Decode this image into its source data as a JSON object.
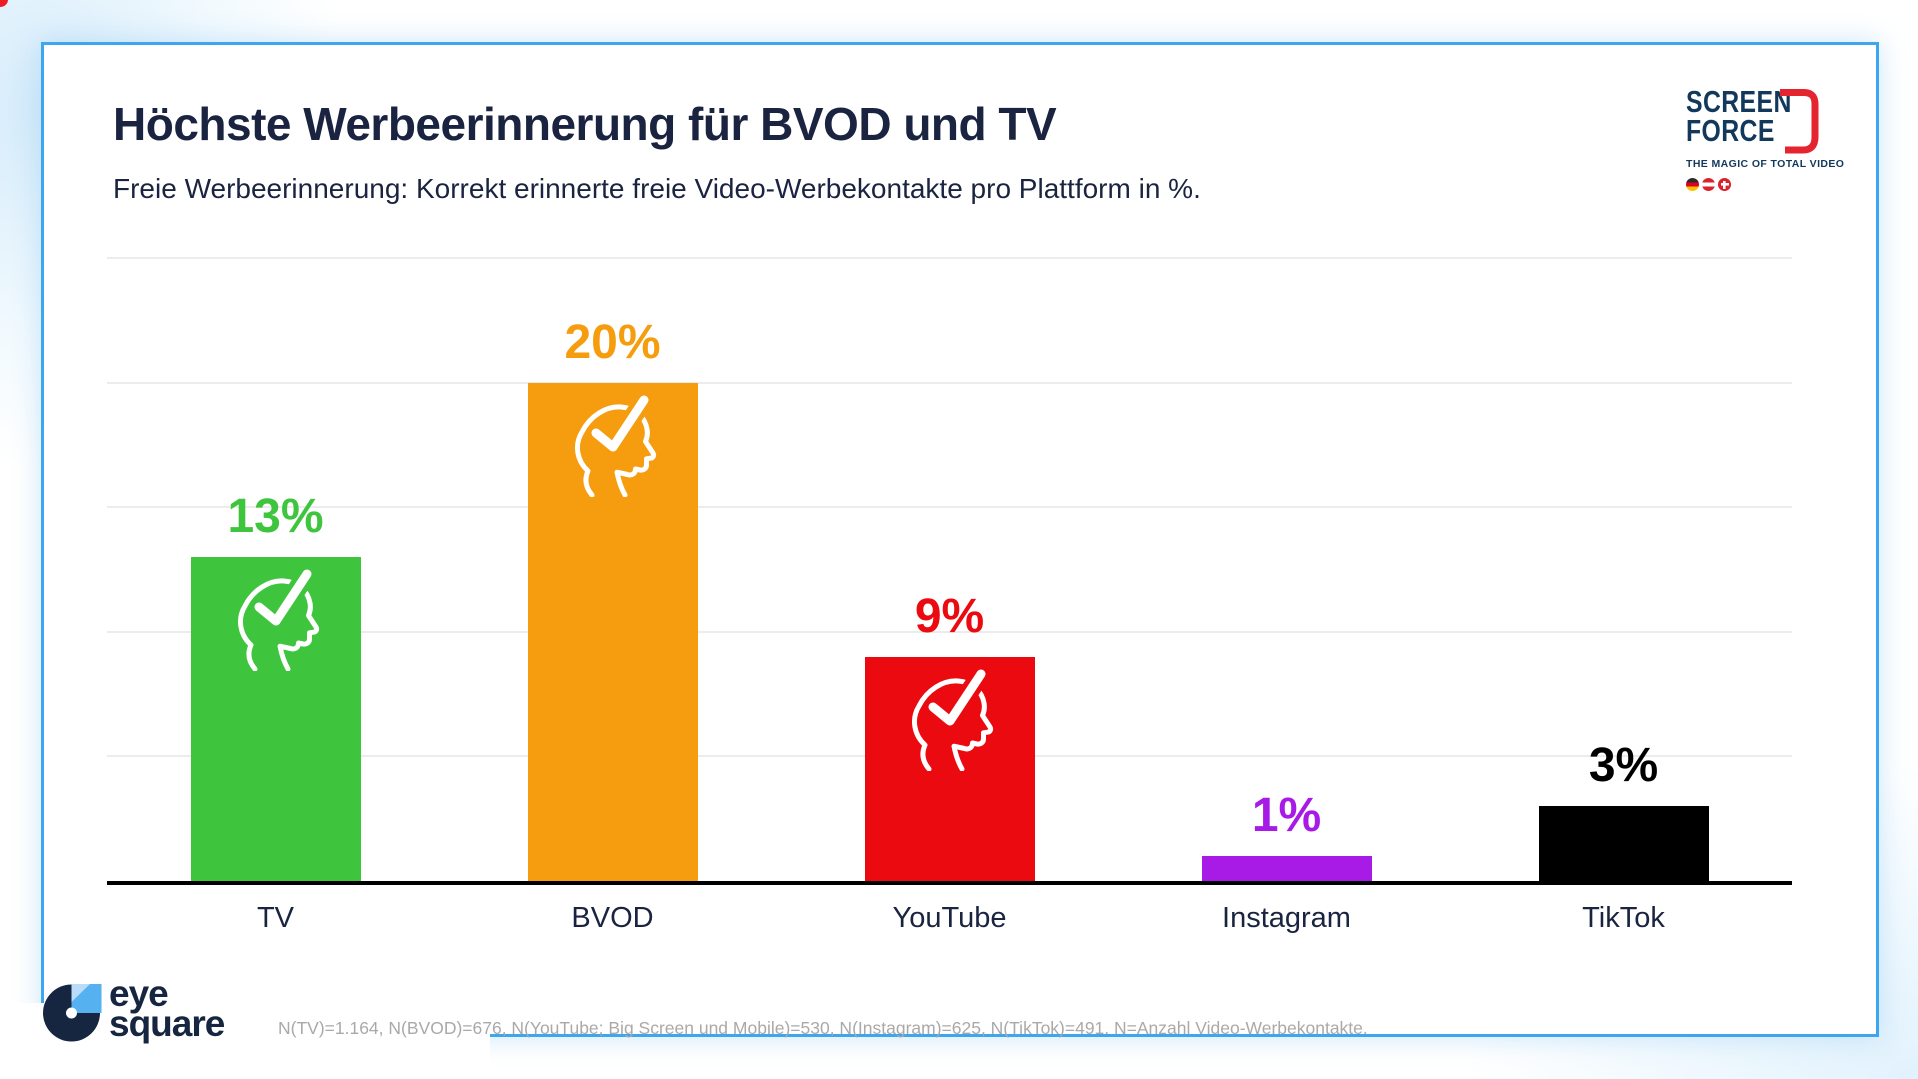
{
  "frame": {
    "border_color": "#3da6ef",
    "record_dot_color": "#ed1c24"
  },
  "header": {
    "title": "Höchste Werbeerinnerung für BVOD und TV",
    "subtitle": "Freie Werbeerinnerung: Korrekt erinnerte freie Video-Werbekontakte pro Plattform in %."
  },
  "screenforce_logo": {
    "line1": "SCREEN",
    "line2": "FORCE",
    "tagline": "THE MAGIC OF TOTAL VIDEO",
    "navy": "#12395c",
    "red": "#e4252f",
    "flags": [
      "germany",
      "austria",
      "switzerland"
    ]
  },
  "eyesquare_logo": {
    "line1": "eye",
    "line2": "square",
    "navy": "#162540",
    "blue": "#55b1ef",
    "pale_blue": "#b9dcf8"
  },
  "chart_data": {
    "type": "bar",
    "title": "Höchste Werbeerinnerung für BVOD und TV",
    "subtitle": "Freie Werbeerinnerung: Korrekt erinnerte freie Video-Werbekontakte pro Plattform in %.",
    "categories": [
      "TV",
      "BVOD",
      "YouTube",
      "Instagram",
      "TikTok"
    ],
    "values": [
      13,
      20,
      9,
      1,
      3
    ],
    "value_labels": [
      "13%",
      "20%",
      "9%",
      "1%",
      "3%"
    ],
    "bar_colors": [
      "#3fc43d",
      "#f59d0e",
      "#eb0a10",
      "#a81ae6",
      "#000000"
    ],
    "icon_on_bar": [
      true,
      true,
      true,
      false,
      false
    ],
    "icon": "head-with-checkmark",
    "unit": "%",
    "xlabel": "",
    "ylabel": "",
    "ylim": [
      0,
      25
    ],
    "grid": true,
    "grid_step": 5,
    "legend": false
  },
  "footnote": "N(TV)=1.164, N(BVOD)=676, N(YouTube; Big Screen und Mobile)=530, N(Instagram)=625, N(TikTok)=491. N=Anzahl Video-Werbekontakte."
}
